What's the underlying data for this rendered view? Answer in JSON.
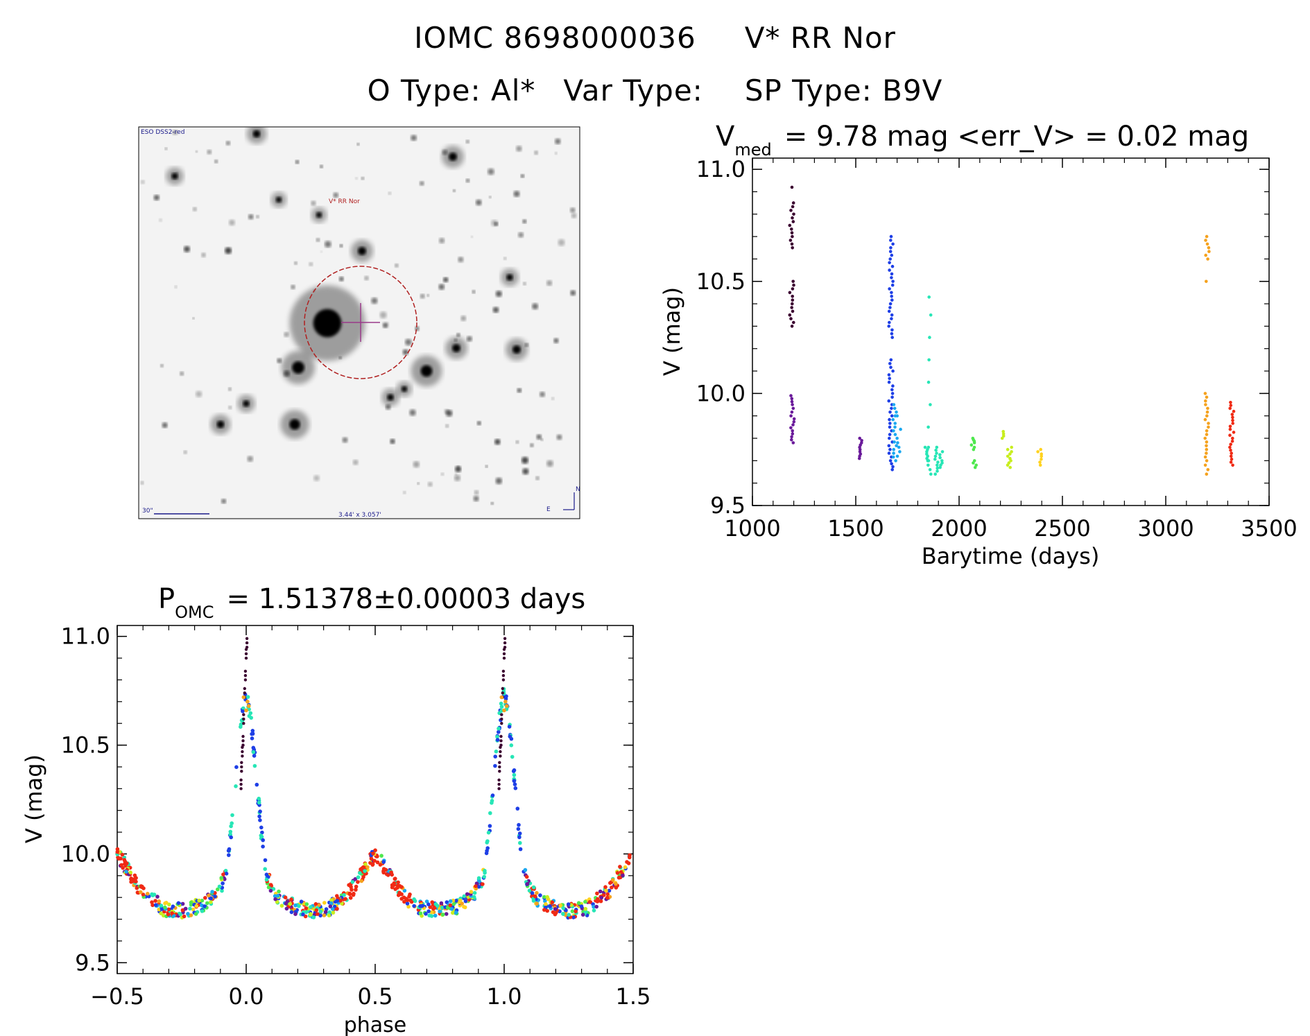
{
  "header": {
    "object_id": "IOMC 8698000036",
    "object_name": "V* RR Nor",
    "o_type": "O Type: Al*",
    "var_type": "Var Type:",
    "sp_type": "SP Type: B9V"
  },
  "finder": {
    "survey_label": "ESO DSS2-red",
    "target_label": "V* RR Nor",
    "scale_label": "30\"",
    "field_label": "3.44' x 3.057'",
    "north_label": "N",
    "east_label": "E"
  },
  "colors": {
    "c0": "#3b0030",
    "c1": "#6a1a9a",
    "c2": "#1e3fe6",
    "c3": "#1aa8f0",
    "c4": "#27e6b6",
    "c5": "#4ee84e",
    "c6": "#c8ee1e",
    "c7": "#ffd21e",
    "c8": "#f5a21e",
    "c9": "#f02a14",
    "marker": "#8b1a1a"
  },
  "chart_data": [
    {
      "type": "scatter",
      "title_prefix": "V",
      "title_sub": "med",
      "title_rest": "= 9.78 mag <err_V> = 0.02 mag",
      "xlabel": "Barytime (days)",
      "ylabel": "V (mag)",
      "xlim": [
        1000,
        3500
      ],
      "ylim": [
        11.05,
        9.5
      ],
      "xticks": [
        "1000",
        "1500",
        "2000",
        "2500",
        "3000",
        "3500"
      ],
      "yticks": [
        "9.5",
        "10.0",
        "10.5",
        "11.0"
      ],
      "series": [
        {
          "name": "1190",
          "color": "c0",
          "x": 1190,
          "values": [
            10.3,
            10.35,
            10.4,
            10.45,
            10.5,
            10.65,
            10.7,
            10.75,
            10.8,
            10.85,
            10.92
          ]
        },
        {
          "name": "1195",
          "color": "c1",
          "x": 1195,
          "values": [
            9.78,
            9.82,
            9.86,
            9.9,
            9.95,
            9.99
          ]
        },
        {
          "name": "1520",
          "color": "c1",
          "x": 1520,
          "values": [
            9.71,
            9.74,
            9.77,
            9.8
          ]
        },
        {
          "name": "1670",
          "color": "c2",
          "x": 1670,
          "values": [
            9.66,
            9.7,
            9.75,
            9.8,
            9.85,
            9.9,
            9.95,
            10.0,
            10.05,
            10.1,
            10.15,
            10.25,
            10.3,
            10.35,
            10.4,
            10.45,
            10.5,
            10.55,
            10.6,
            10.65,
            10.7
          ]
        },
        {
          "name": "1690",
          "color": "c3",
          "x": 1690,
          "values": [
            9.7,
            9.75,
            9.8,
            9.85,
            9.9,
            9.95
          ]
        },
        {
          "name": "1710",
          "color": "c3",
          "x": 1710,
          "values": [
            9.72,
            9.78,
            9.84,
            9.9
          ]
        },
        {
          "name": "1840",
          "color": "c4",
          "x": 1840,
          "values": [
            9.7,
            9.73,
            9.76
          ]
        },
        {
          "name": "1860",
          "color": "c4",
          "x": 1860,
          "values": [
            9.64,
            9.7,
            9.76,
            9.85,
            9.95,
            10.05,
            10.15,
            10.25,
            10.35,
            10.43
          ]
        },
        {
          "name": "1890",
          "color": "c4",
          "x": 1890,
          "values": [
            9.64,
            9.68,
            9.72,
            9.76
          ]
        },
        {
          "name": "1910",
          "color": "c4",
          "x": 1910,
          "values": [
            9.67,
            9.7,
            9.74
          ]
        },
        {
          "name": "2065",
          "color": "c5",
          "x": 2065,
          "values": [
            9.75,
            9.78,
            9.8
          ]
        },
        {
          "name": "2075",
          "color": "c5",
          "x": 2075,
          "values": [
            9.67,
            9.7
          ]
        },
        {
          "name": "2210",
          "color": "c6",
          "x": 2210,
          "values": [
            9.8,
            9.83
          ]
        },
        {
          "name": "2245",
          "color": "c6",
          "x": 2245,
          "values": [
            9.67,
            9.7,
            9.73,
            9.76
          ]
        },
        {
          "name": "2390",
          "color": "c7",
          "x": 2390,
          "values": [
            9.68,
            9.72,
            9.75
          ]
        },
        {
          "name": "3200",
          "color": "c8",
          "x": 3200,
          "values": [
            9.64,
            9.7,
            9.75,
            9.8,
            9.85,
            9.9,
            9.95,
            10.0,
            10.5,
            10.6,
            10.65,
            10.7
          ]
        },
        {
          "name": "3320",
          "color": "c9",
          "x": 3320,
          "values": [
            9.68,
            9.72,
            9.76,
            9.8,
            9.84,
            9.88,
            9.92,
            9.96
          ]
        }
      ]
    },
    {
      "type": "scatter",
      "title_prefix": "P",
      "title_sub": "OMC",
      "title_rest": "= 1.51378±0.00003 days",
      "xlabel": "phase",
      "ylabel": "V (mag)",
      "xlim": [
        -0.5,
        1.5
      ],
      "ylim": [
        11.05,
        9.45
      ],
      "xticks": [
        "−0.5",
        "0.0",
        "0.5",
        "1.0",
        "1.5"
      ],
      "yticks": [
        "9.5",
        "10.0",
        "10.5",
        "11.0"
      ],
      "curve": {
        "phase": [
          0.0,
          0.02,
          0.04,
          0.06,
          0.08,
          0.12,
          0.18,
          0.25,
          0.32,
          0.38,
          0.42,
          0.46,
          0.5
        ],
        "mag": [
          10.75,
          10.6,
          10.35,
          10.08,
          9.9,
          9.8,
          9.76,
          9.74,
          9.75,
          9.8,
          9.85,
          9.93,
          10.0
        ]
      },
      "eclipse_points": {
        "color": "c0",
        "phase": [
          -0.02,
          -0.018,
          -0.015,
          -0.012,
          -0.01,
          -0.006,
          -0.003,
          0.0,
          0.003
        ],
        "mag": [
          10.3,
          10.38,
          10.45,
          10.5,
          10.6,
          10.72,
          10.8,
          10.9,
          10.95
        ]
      },
      "orange_eclipse": {
        "color": "c8",
        "phase": [
          0.0,
          0.01,
          -0.01,
          0.005
        ],
        "mag": [
          10.66,
          10.68,
          10.72,
          10.7
        ]
      }
    }
  ]
}
